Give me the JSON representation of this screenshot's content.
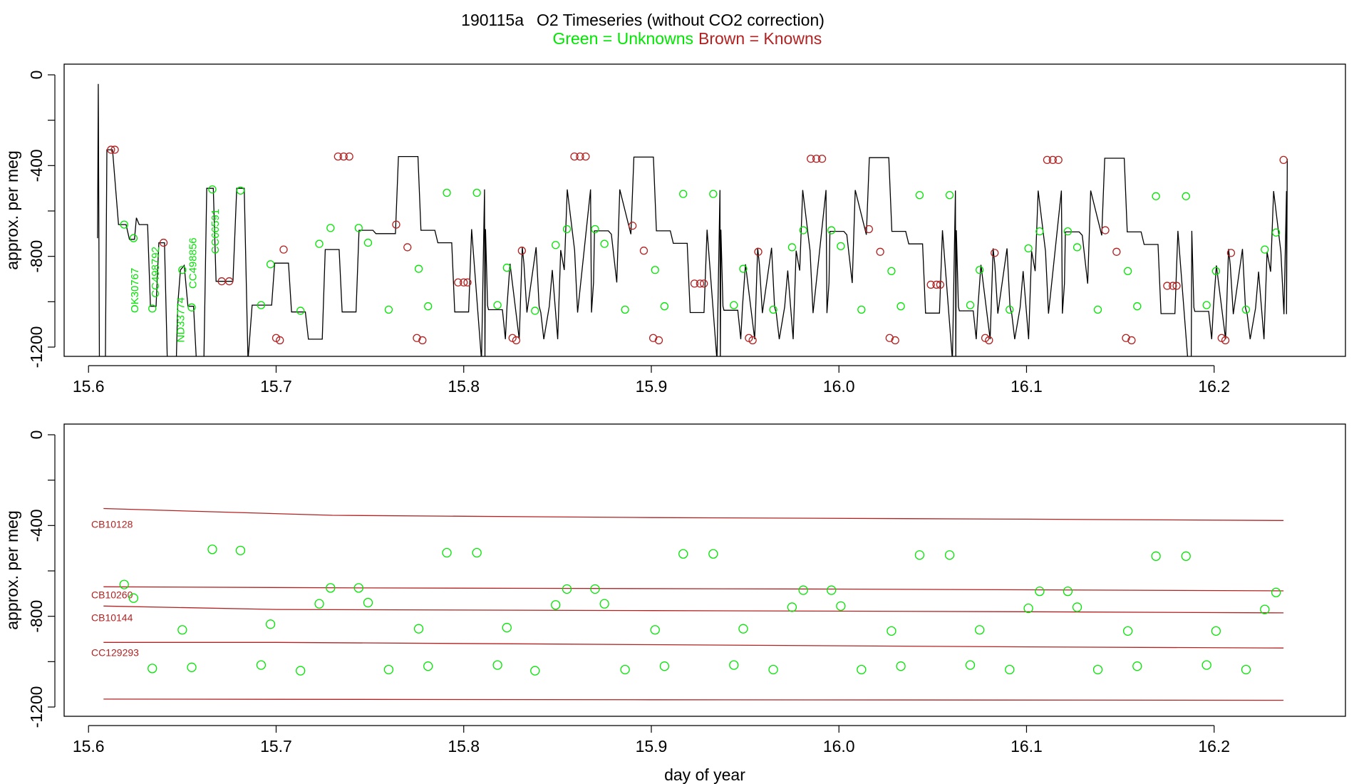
{
  "figure": {
    "title_id": "190115a",
    "title_main": "O2 Timeseries (without CO2 correction)",
    "legend_unknowns": "Green = Unknowns",
    "legend_knowns": "Brown = Knowns",
    "colors": {
      "unknown": "#00e600",
      "known": "#b22222",
      "trace": "#000000",
      "axis": "#000000"
    }
  },
  "chart_data": [
    {
      "type": "line",
      "panel": "top",
      "ylabel": "approx. per meg",
      "xlabel": "",
      "xlim": [
        15.587,
        16.27
      ],
      "ylim": [
        -1250,
        50
      ],
      "xticks": [
        15.6,
        15.7,
        15.8,
        15.9,
        16.0,
        16.1,
        16.2
      ],
      "xtick_labels": [
        "15.6",
        "15.7",
        "15.8",
        "15.9",
        "16.0",
        "16.1",
        "16.2"
      ],
      "yticks": [
        0,
        -400,
        -800,
        -1200
      ],
      "ytick_labels": [
        "0",
        "-400",
        "-800",
        "-1200"
      ],
      "cycle": {
        "start": 15.686,
        "period": 0.1255,
        "steps": [
          [
            0.0,
            -1015
          ],
          [
            0.012,
            -830
          ],
          [
            0.021,
            -1045
          ],
          [
            0.03,
            -1165
          ],
          [
            0.039,
            -770
          ],
          [
            0.048,
            -1045
          ],
          [
            0.057,
            -685
          ],
          [
            0.066,
            -700
          ],
          [
            0.078,
            -360
          ],
          [
            0.09,
            -685
          ],
          [
            0.099,
            -740
          ],
          [
            0.108,
            -1045
          ],
          [
            0.117,
            -680
          ],
          [
            0.126,
            -1035
          ],
          [
            0.135,
            -1165
          ],
          [
            0.144,
            -760
          ],
          [
            0.153,
            -1020
          ],
          [
            0.16,
            -860
          ],
          [
            0.168,
            -505
          ],
          [
            0.182,
            -915
          ],
          [
            0.196,
            -505
          ]
        ]
      },
      "trace_points": [
        [
          15.6048,
          -720
        ],
        [
          15.6052,
          -40
        ],
        [
          15.6058,
          -1260
        ],
        [
          15.609,
          -1260
        ],
        [
          15.6098,
          -330
        ],
        [
          15.6128,
          -330
        ],
        [
          15.616,
          -660
        ],
        [
          15.62,
          -660
        ],
        [
          15.6218,
          -725
        ],
        [
          15.6245,
          -725
        ],
        [
          15.6255,
          -630
        ],
        [
          15.627,
          -660
        ],
        [
          15.6315,
          -660
        ],
        [
          15.633,
          -1020
        ],
        [
          15.636,
          -1020
        ],
        [
          15.6375,
          -740
        ],
        [
          15.6405,
          -740
        ],
        [
          15.642,
          -1260
        ],
        [
          15.6468,
          -1260
        ],
        [
          15.6475,
          -1020
        ],
        [
          15.649,
          -860
        ],
        [
          15.651,
          -840
        ],
        [
          15.653,
          -1020
        ],
        [
          15.656,
          -1020
        ],
        [
          15.6575,
          -1260
        ],
        [
          15.6615,
          -1260
        ],
        [
          15.663,
          -500
        ],
        [
          15.6665,
          -500
        ],
        [
          15.668,
          -910
        ],
        [
          15.677,
          -910
        ],
        [
          15.679,
          -500
        ],
        [
          15.683,
          -500
        ],
        [
          15.685,
          -1260
        ]
      ],
      "unknown_points": [
        [
          15.619,
          -660
        ],
        [
          15.624,
          -720
        ],
        [
          15.634,
          -1030
        ],
        [
          15.65,
          -860
        ],
        [
          15.655,
          -1025
        ],
        [
          15.666,
          -505
        ],
        [
          15.681,
          -510
        ],
        [
          15.692,
          -1015
        ],
        [
          15.697,
          -835
        ],
        [
          15.713,
          -1040
        ],
        [
          15.723,
          -745
        ],
        [
          15.729,
          -675
        ],
        [
          15.744,
          -675
        ],
        [
          15.749,
          -740
        ],
        [
          15.76,
          -1035
        ],
        [
          15.776,
          -855
        ],
        [
          15.781,
          -1020
        ],
        [
          15.791,
          -520
        ],
        [
          15.807,
          -520
        ],
        [
          15.818,
          -1015
        ],
        [
          15.823,
          -850
        ],
        [
          15.838,
          -1040
        ],
        [
          15.849,
          -750
        ],
        [
          15.855,
          -680
        ],
        [
          15.87,
          -680
        ],
        [
          15.875,
          -745
        ],
        [
          15.886,
          -1035
        ],
        [
          15.902,
          -860
        ],
        [
          15.907,
          -1020
        ],
        [
          15.917,
          -525
        ],
        [
          15.933,
          -525
        ],
        [
          15.944,
          -1015
        ],
        [
          15.949,
          -855
        ],
        [
          15.965,
          -1035
        ],
        [
          15.975,
          -760
        ],
        [
          15.981,
          -685
        ],
        [
          15.996,
          -685
        ],
        [
          16.001,
          -755
        ],
        [
          16.012,
          -1035
        ],
        [
          16.028,
          -865
        ],
        [
          16.033,
          -1020
        ],
        [
          16.043,
          -530
        ],
        [
          16.059,
          -530
        ],
        [
          16.07,
          -1015
        ],
        [
          16.075,
          -860
        ],
        [
          16.091,
          -1035
        ],
        [
          16.101,
          -765
        ],
        [
          16.107,
          -690
        ],
        [
          16.122,
          -690
        ],
        [
          16.127,
          -760
        ],
        [
          16.138,
          -1035
        ],
        [
          16.154,
          -865
        ],
        [
          16.159,
          -1020
        ],
        [
          16.169,
          -535
        ],
        [
          16.185,
          -535
        ],
        [
          16.196,
          -1015
        ],
        [
          16.201,
          -865
        ],
        [
          16.217,
          -1035
        ],
        [
          16.227,
          -770
        ],
        [
          16.233,
          -695
        ]
      ],
      "known_points": [
        [
          15.612,
          -330
        ],
        [
          15.614,
          -330
        ],
        [
          15.64,
          -740
        ],
        [
          15.671,
          -910
        ],
        [
          15.675,
          -910
        ],
        [
          15.7,
          -1160
        ],
        [
          15.702,
          -1170
        ],
        [
          15.704,
          -770
        ],
        [
          15.733,
          -360
        ],
        [
          15.736,
          -360
        ],
        [
          15.739,
          -360
        ],
        [
          15.764,
          -660
        ],
        [
          15.77,
          -760
        ],
        [
          15.775,
          -1160
        ],
        [
          15.778,
          -1170
        ],
        [
          15.797,
          -915
        ],
        [
          15.8,
          -915
        ],
        [
          15.802,
          -915
        ],
        [
          15.826,
          -1160
        ],
        [
          15.828,
          -1170
        ],
        [
          15.831,
          -775
        ],
        [
          15.859,
          -360
        ],
        [
          15.862,
          -360
        ],
        [
          15.865,
          -360
        ],
        [
          15.89,
          -665
        ],
        [
          15.896,
          -775
        ],
        [
          15.901,
          -1160
        ],
        [
          15.904,
          -1170
        ],
        [
          15.923,
          -920
        ],
        [
          15.926,
          -920
        ],
        [
          15.928,
          -920
        ],
        [
          15.952,
          -1160
        ],
        [
          15.954,
          -1170
        ],
        [
          15.957,
          -780
        ],
        [
          15.985,
          -370
        ],
        [
          15.988,
          -370
        ],
        [
          15.991,
          -370
        ],
        [
          16.016,
          -680
        ],
        [
          16.022,
          -780
        ],
        [
          16.027,
          -1160
        ],
        [
          16.03,
          -1170
        ],
        [
          16.049,
          -925
        ],
        [
          16.052,
          -925
        ],
        [
          16.054,
          -925
        ],
        [
          16.078,
          -1160
        ],
        [
          16.08,
          -1170
        ],
        [
          16.083,
          -785
        ],
        [
          16.111,
          -375
        ],
        [
          16.114,
          -375
        ],
        [
          16.117,
          -375
        ],
        [
          16.142,
          -685
        ],
        [
          16.148,
          -780
        ],
        [
          16.153,
          -1160
        ],
        [
          16.156,
          -1170
        ],
        [
          16.175,
          -930
        ],
        [
          16.178,
          -930
        ],
        [
          16.18,
          -930
        ],
        [
          16.204,
          -1160
        ],
        [
          16.206,
          -1170
        ],
        [
          16.209,
          -785
        ],
        [
          16.237,
          -375
        ]
      ],
      "annotations": [
        {
          "text": "OK30767",
          "x": 15.6265,
          "y": -950
        },
        {
          "text": "CC498792",
          "x": 15.6375,
          "y": -870
        },
        {
          "text": "ND33774",
          "x": 15.651,
          "y": -1080
        },
        {
          "text": "CC498856",
          "x": 15.6575,
          "y": -830
        },
        {
          "text": "CC66591",
          "x": 15.6695,
          "y": -690
        }
      ]
    },
    {
      "type": "scatter",
      "panel": "bottom",
      "ylabel": "approx. per meg",
      "xlabel": "day of year",
      "xlim": [
        15.587,
        16.27
      ],
      "ylim": [
        -1250,
        50
      ],
      "xticks": [
        15.6,
        15.7,
        15.8,
        15.9,
        16.0,
        16.1,
        16.2
      ],
      "xtick_labels": [
        "15.6",
        "15.7",
        "15.8",
        "15.9",
        "16.0",
        "16.1",
        "16.2"
      ],
      "yticks": [
        0,
        -400,
        -800,
        -1200
      ],
      "ytick_labels": [
        "0",
        "-400",
        "-800",
        "-1200"
      ],
      "reference_lines": [
        {
          "name": "CB10128",
          "points": [
            [
              15.608,
              -325
            ],
            [
              15.73,
              -355
            ],
            [
              15.9,
              -365
            ],
            [
              16.1,
              -372
            ],
            [
              16.237,
              -378
            ]
          ]
        },
        {
          "name": "CB10260",
          "points": [
            [
              15.608,
              -670
            ],
            [
              15.75,
              -675
            ],
            [
              16.0,
              -680
            ],
            [
              16.237,
              -688
            ]
          ]
        },
        {
          "name": "CB10144",
          "points": [
            [
              15.608,
              -755
            ],
            [
              15.7,
              -770
            ],
            [
              15.9,
              -775
            ],
            [
              16.1,
              -780
            ],
            [
              16.237,
              -785
            ]
          ]
        },
        {
          "name": "CC129293",
          "points": [
            [
              15.608,
              -915
            ],
            [
              15.7,
              -915
            ],
            [
              15.9,
              -925
            ],
            [
              16.1,
              -935
            ],
            [
              16.237,
              -940
            ]
          ]
        },
        {
          "name": "",
          "points": [
            [
              15.608,
              -1165
            ],
            [
              15.9,
              -1168
            ],
            [
              16.237,
              -1170
            ]
          ]
        }
      ],
      "label_positions": [
        {
          "text": "CB10128",
          "y": -395
        },
        {
          "text": "CB10260",
          "y": -705
        },
        {
          "text": "CB10144",
          "y": -805
        },
        {
          "text": "CC129293",
          "y": -960
        }
      ]
    }
  ]
}
